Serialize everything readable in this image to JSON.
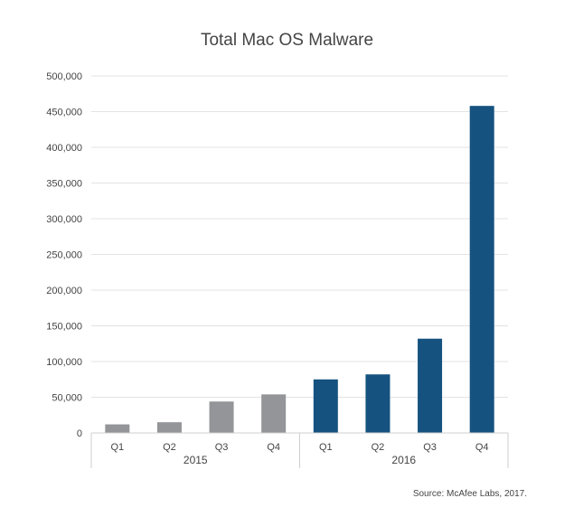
{
  "chart_data": {
    "type": "bar",
    "title": "Total Mac OS Malware",
    "source": "Source: McAfee Labs, 2017.",
    "xlabel": "",
    "ylabel": "",
    "ylim": [
      0,
      500000
    ],
    "yticks": [
      0,
      50000,
      100000,
      150000,
      200000,
      250000,
      300000,
      350000,
      400000,
      450000,
      500000
    ],
    "ytick_labels": [
      "0",
      "50,000",
      "100,000",
      "150,000",
      "200,000",
      "250,000",
      "300,000",
      "350,000",
      "400,000",
      "450,000",
      "500,000"
    ],
    "grid": true,
    "categories": [
      "Q1",
      "Q2",
      "Q3",
      "Q4",
      "Q1",
      "Q2",
      "Q3",
      "Q4"
    ],
    "groups": [
      {
        "label": "2015",
        "start": 0,
        "end": 3
      },
      {
        "label": "2016",
        "start": 4,
        "end": 7
      }
    ],
    "values": [
      12000,
      15000,
      44000,
      54000,
      75000,
      82000,
      132000,
      458000
    ],
    "colors": [
      "#939598",
      "#939598",
      "#939598",
      "#939598",
      "#15527f",
      "#15527f",
      "#15527f",
      "#15527f"
    ],
    "grid_color": "#e3e3e3",
    "axis_color": "#cfcfcf"
  }
}
